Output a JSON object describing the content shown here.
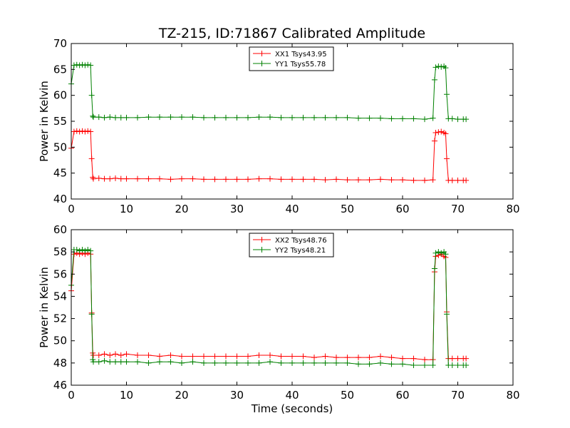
{
  "figure_title": "TZ-215, ID:71867 Calibrated Amplitude",
  "colors": {
    "xx": "#ff0000",
    "yy": "#008000"
  },
  "chart_data": [
    {
      "type": "line",
      "title": "TZ-215, ID:71867 Calibrated Amplitude",
      "xlabel": "",
      "ylabel": "Power in Kelvin",
      "xlim": [
        0,
        80
      ],
      "ylim": [
        40,
        70
      ],
      "xticks": [
        0,
        10,
        20,
        30,
        40,
        50,
        60,
        70,
        80
      ],
      "yticks": [
        40,
        45,
        50,
        55,
        60,
        65,
        70
      ],
      "grid": false,
      "legend_position": "top-center",
      "series": [
        {
          "name": "XX1 Tsys43.95",
          "color": "#ff0000",
          "marker": "+",
          "x": [
            0,
            0.5,
            1,
            1.5,
            2,
            2.5,
            3,
            3.5,
            3.7,
            3.9,
            4,
            5,
            6,
            7,
            8,
            9,
            10,
            12,
            14,
            16,
            18,
            20,
            22,
            24,
            26,
            28,
            30,
            32,
            34,
            36,
            38,
            40,
            42,
            44,
            46,
            48,
            50,
            52,
            54,
            56,
            58,
            60,
            62,
            64,
            65.5,
            65.8,
            66,
            66.5,
            67,
            67.5,
            67.8,
            68,
            68.3,
            69,
            70,
            71,
            71.5
          ],
          "y": [
            49.8,
            53.0,
            53.1,
            53.0,
            53.1,
            53.0,
            53.1,
            53.0,
            47.8,
            44.2,
            43.9,
            44.0,
            43.9,
            43.9,
            44.0,
            43.9,
            43.9,
            43.9,
            43.9,
            43.9,
            43.8,
            43.9,
            43.9,
            43.8,
            43.8,
            43.8,
            43.8,
            43.8,
            43.9,
            43.9,
            43.8,
            43.8,
            43.8,
            43.8,
            43.7,
            43.8,
            43.7,
            43.7,
            43.7,
            43.8,
            43.7,
            43.7,
            43.6,
            43.6,
            43.7,
            51.2,
            52.8,
            52.9,
            53.0,
            52.8,
            52.6,
            47.8,
            43.6,
            43.6,
            43.6,
            43.6,
            43.6
          ]
        },
        {
          "name": "YY1 Tsys55.78",
          "color": "#008000",
          "marker": "+",
          "x": [
            0,
            0.5,
            1,
            1.5,
            2,
            2.5,
            3,
            3.5,
            3.7,
            3.9,
            4,
            5,
            6,
            7,
            8,
            9,
            10,
            12,
            14,
            16,
            18,
            20,
            22,
            24,
            26,
            28,
            30,
            32,
            34,
            36,
            38,
            40,
            42,
            44,
            46,
            48,
            50,
            52,
            54,
            56,
            58,
            60,
            62,
            64,
            65.5,
            65.8,
            66,
            66.5,
            67,
            67.5,
            67.8,
            68,
            68.3,
            69,
            70,
            71,
            71.5
          ],
          "y": [
            62.2,
            65.8,
            65.9,
            65.8,
            65.9,
            65.8,
            65.9,
            65.8,
            60.0,
            56.0,
            55.8,
            55.8,
            55.7,
            55.8,
            55.7,
            55.7,
            55.7,
            55.7,
            55.8,
            55.8,
            55.8,
            55.8,
            55.8,
            55.7,
            55.7,
            55.7,
            55.7,
            55.7,
            55.8,
            55.8,
            55.7,
            55.7,
            55.7,
            55.7,
            55.7,
            55.7,
            55.7,
            55.6,
            55.6,
            55.6,
            55.5,
            55.5,
            55.5,
            55.4,
            55.6,
            63.0,
            65.4,
            65.6,
            65.5,
            65.6,
            65.3,
            60.2,
            55.5,
            55.5,
            55.4,
            55.4,
            55.4
          ]
        }
      ]
    },
    {
      "type": "line",
      "title": "",
      "xlabel": "Time (seconds)",
      "ylabel": "Power in Kelvin",
      "xlim": [
        0,
        80
      ],
      "ylim": [
        46,
        60
      ],
      "xticks": [
        0,
        10,
        20,
        30,
        40,
        50,
        60,
        70,
        80
      ],
      "yticks": [
        46,
        48,
        50,
        52,
        54,
        56,
        58,
        60
      ],
      "grid": false,
      "legend_position": "top-center",
      "series": [
        {
          "name": "XX2 Tsys48.76",
          "color": "#ff0000",
          "marker": "+",
          "x": [
            0,
            0.5,
            1,
            1.5,
            2,
            2.5,
            3,
            3.5,
            3.7,
            3.9,
            4,
            5,
            6,
            7,
            8,
            9,
            10,
            12,
            14,
            16,
            18,
            20,
            22,
            24,
            26,
            28,
            30,
            32,
            34,
            36,
            38,
            40,
            42,
            44,
            46,
            48,
            50,
            52,
            54,
            56,
            58,
            60,
            62,
            64,
            65.5,
            65.8,
            66,
            66.5,
            67,
            67.5,
            67.8,
            68,
            68.3,
            69,
            70,
            71,
            71.5
          ],
          "y": [
            54.5,
            57.8,
            57.9,
            57.8,
            57.9,
            57.8,
            57.9,
            57.8,
            52.5,
            48.9,
            48.7,
            48.7,
            48.8,
            48.7,
            48.8,
            48.7,
            48.8,
            48.7,
            48.7,
            48.6,
            48.7,
            48.6,
            48.6,
            48.6,
            48.6,
            48.6,
            48.6,
            48.6,
            48.7,
            48.7,
            48.6,
            48.6,
            48.6,
            48.5,
            48.6,
            48.5,
            48.5,
            48.5,
            48.5,
            48.6,
            48.5,
            48.4,
            48.4,
            48.3,
            48.3,
            56.2,
            57.6,
            57.7,
            57.8,
            57.6,
            57.5,
            52.6,
            48.4,
            48.4,
            48.4,
            48.4,
            48.4
          ]
        },
        {
          "name": "YY2 Tsys48.21",
          "color": "#008000",
          "marker": "+",
          "x": [
            0,
            0.5,
            1,
            1.5,
            2,
            2.5,
            3,
            3.5,
            3.7,
            3.9,
            4,
            5,
            6,
            7,
            8,
            9,
            10,
            12,
            14,
            16,
            18,
            20,
            22,
            24,
            26,
            28,
            30,
            32,
            34,
            36,
            38,
            40,
            42,
            44,
            46,
            48,
            50,
            52,
            54,
            56,
            58,
            60,
            62,
            64,
            65.5,
            65.8,
            66,
            66.5,
            67,
            67.5,
            67.8,
            68,
            68.3,
            69,
            70,
            71,
            71.5
          ],
          "y": [
            55.0,
            58.2,
            58.2,
            58.1,
            58.2,
            58.1,
            58.2,
            58.1,
            52.4,
            48.3,
            48.1,
            48.1,
            48.2,
            48.1,
            48.1,
            48.1,
            48.1,
            48.1,
            48.0,
            48.1,
            48.1,
            48.0,
            48.1,
            48.0,
            48.0,
            48.0,
            48.0,
            48.0,
            48.0,
            48.1,
            48.0,
            48.0,
            48.0,
            48.0,
            48.0,
            48.0,
            48.0,
            47.9,
            47.9,
            48.0,
            47.9,
            47.9,
            47.8,
            47.8,
            47.8,
            56.5,
            57.9,
            58.0,
            57.9,
            58.0,
            57.8,
            52.4,
            47.8,
            47.8,
            47.8,
            47.8,
            47.8
          ]
        }
      ]
    }
  ]
}
